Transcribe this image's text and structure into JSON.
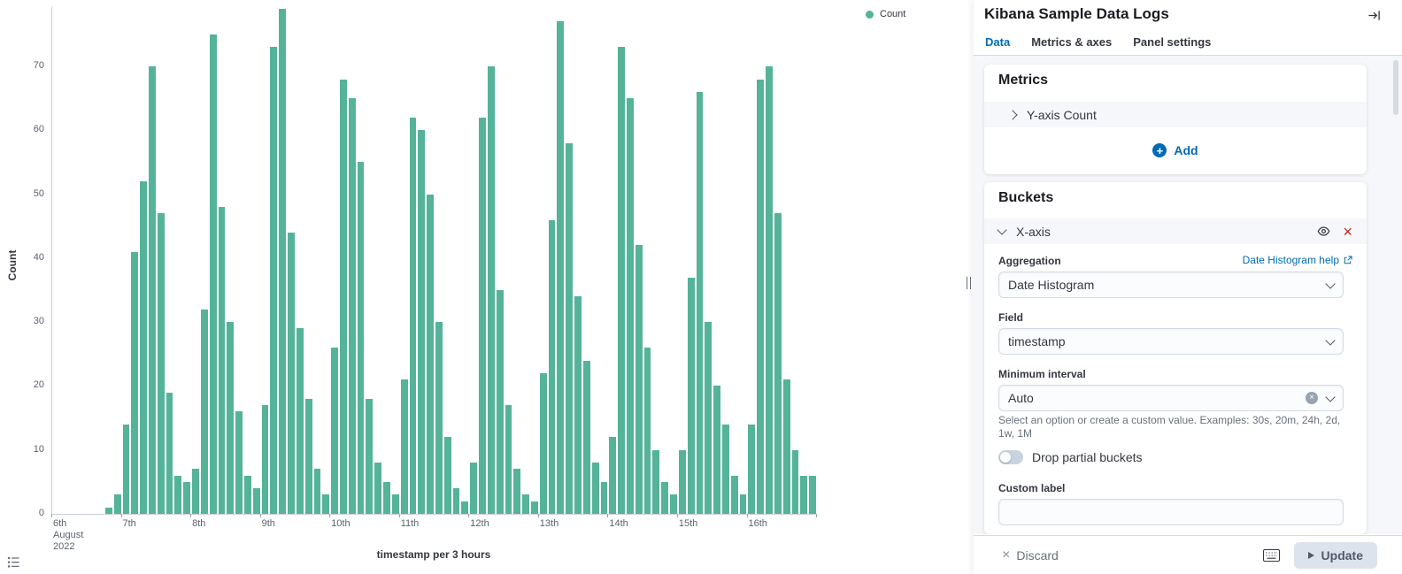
{
  "chart_data": {
    "type": "bar",
    "title": "",
    "xlabel": "timestamp per 3 hours",
    "ylabel": "Count",
    "legend": [
      "Count"
    ],
    "legend_position": "top-right",
    "grid": false,
    "bar_color": "#54B399",
    "ylim": [
      0,
      79
    ],
    "yticks": [
      0,
      10,
      20,
      30,
      40,
      50,
      60,
      70
    ],
    "x_tick_labels": [
      "6th|August|2022",
      "7th",
      "8th",
      "9th",
      "10th",
      "11th",
      "12th",
      "13th",
      "14th",
      "15th",
      "16th"
    ],
    "buckets_per_day": 8,
    "values": [
      0,
      0,
      0,
      0,
      0,
      0,
      1,
      3,
      14,
      41,
      52,
      70,
      47,
      19,
      6,
      5,
      7,
      32,
      75,
      48,
      30,
      16,
      6,
      4,
      17,
      73,
      79,
      44,
      29,
      18,
      7,
      3,
      26,
      68,
      65,
      55,
      18,
      8,
      5,
      3,
      21,
      62,
      60,
      50,
      30,
      12,
      4,
      2,
      8,
      62,
      70,
      35,
      17,
      7,
      3,
      2,
      22,
      46,
      77,
      58,
      34,
      24,
      8,
      5,
      12,
      73,
      65,
      42,
      26,
      10,
      5,
      3,
      10,
      37,
      66,
      30,
      20,
      14,
      6,
      3,
      14,
      68,
      70,
      47,
      21,
      10,
      6,
      6
    ]
  },
  "panel": {
    "title": "Kibana Sample Data Logs",
    "tabs": [
      {
        "label": "Data"
      },
      {
        "label": "Metrics & axes"
      },
      {
        "label": "Panel settings"
      }
    ],
    "metrics": {
      "heading": "Metrics",
      "row_label": "Y-axis Count",
      "add_label": "Add"
    },
    "buckets": {
      "heading": "Buckets",
      "row_label": "X-axis",
      "aggregation_label": "Aggregation",
      "aggregation_help": "Date Histogram help",
      "aggregation_value": "Date Histogram",
      "field_label": "Field",
      "field_value": "timestamp",
      "interval_label": "Minimum interval",
      "interval_value": "Auto",
      "interval_help": "Select an option or create a custom value. Examples: 30s, 20m, 24h, 2d, 1w, 1M",
      "toggle_label": "Drop partial buckets",
      "custom_label": "Custom label",
      "custom_value": ""
    },
    "footer": {
      "discard": "Discard",
      "update": "Update"
    },
    "accent_color": "#006BB4"
  }
}
